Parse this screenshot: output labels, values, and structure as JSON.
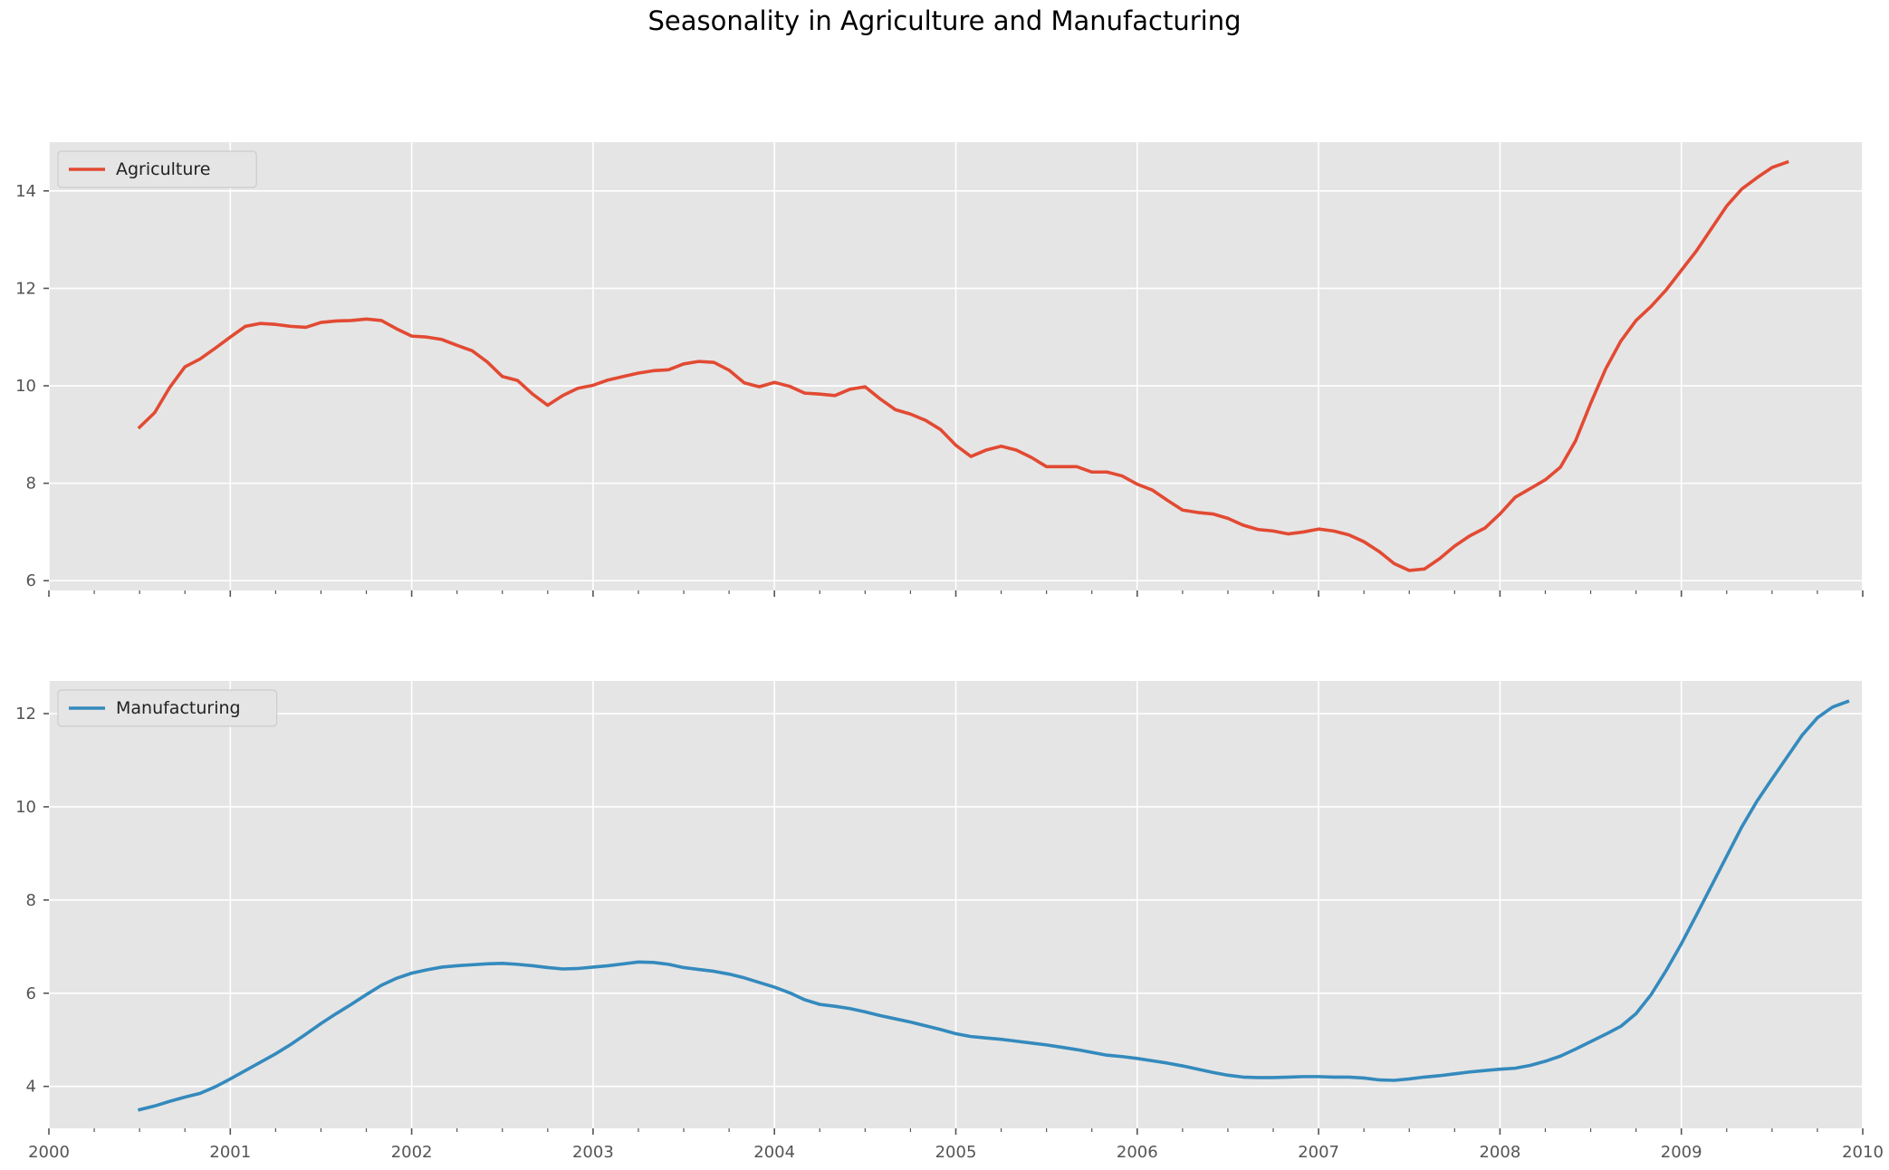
{
  "suptitle": "Seasonality in Agriculture and Manufacturing",
  "x_tick_labels": [
    "2000",
    "2001",
    "2002",
    "2003",
    "2004",
    "2005",
    "2006",
    "2007",
    "2008",
    "2009",
    "2010"
  ],
  "chart_data": [
    {
      "type": "line",
      "legend_placement": "upper-left",
      "grid": true,
      "xlim": [
        "2000-01",
        "2010-01"
      ],
      "ylim": [
        5.8,
        15.0
      ],
      "yticks": [
        6,
        8,
        10,
        12,
        14
      ],
      "series": [
        {
          "name": "Agriculture",
          "color": "#E24A33",
          "start": "2000-07",
          "frequency": "monthly",
          "values": [
            9.15,
            9.45,
            9.97,
            10.39,
            10.55,
            10.77,
            11.0,
            11.22,
            11.28,
            11.26,
            11.22,
            11.2,
            11.3,
            11.33,
            11.34,
            11.37,
            11.34,
            11.17,
            11.02,
            11.0,
            10.95,
            10.83,
            10.72,
            10.49,
            10.19,
            10.11,
            9.83,
            9.6,
            9.8,
            9.95,
            10.01,
            10.12,
            10.19,
            10.26,
            10.31,
            10.33,
            10.45,
            10.5,
            10.48,
            10.32,
            10.06,
            9.98,
            10.07,
            9.99,
            9.85,
            9.83,
            9.8,
            9.93,
            9.98,
            9.73,
            9.51,
            9.42,
            9.29,
            9.1,
            8.78,
            8.55,
            8.68,
            8.76,
            8.68,
            8.53,
            8.34,
            8.34,
            8.34,
            8.23,
            8.23,
            8.15,
            7.98,
            7.86,
            7.65,
            7.45,
            7.4,
            7.37,
            7.28,
            7.14,
            7.05,
            7.02,
            6.96,
            7.0,
            7.06,
            7.02,
            6.94,
            6.8,
            6.6,
            6.35,
            6.21,
            6.24,
            6.45,
            6.71,
            6.92,
            7.08,
            7.37,
            7.71,
            7.89,
            8.07,
            8.33,
            8.87,
            9.64,
            10.35,
            10.92,
            11.34,
            11.63,
            11.97,
            12.37,
            12.77,
            13.23,
            13.69,
            14.04,
            14.27,
            14.48,
            14.59
          ]
        }
      ]
    },
    {
      "type": "line",
      "legend_placement": "upper-left",
      "grid": true,
      "xlim": [
        "2000-01",
        "2010-01"
      ],
      "ylim": [
        3.1,
        12.7
      ],
      "yticks": [
        4,
        6,
        8,
        10,
        12
      ],
      "series": [
        {
          "name": "Manufacturing",
          "color": "#348ABD",
          "start": "2000-07",
          "frequency": "monthly",
          "values": [
            3.5,
            3.58,
            3.68,
            3.77,
            3.85,
            3.99,
            4.16,
            4.34,
            4.52,
            4.7,
            4.9,
            5.12,
            5.35,
            5.56,
            5.76,
            5.97,
            6.17,
            6.32,
            6.43,
            6.5,
            6.56,
            6.59,
            6.61,
            6.63,
            6.64,
            6.62,
            6.59,
            6.55,
            6.52,
            6.53,
            6.56,
            6.59,
            6.63,
            6.67,
            6.66,
            6.62,
            6.55,
            6.51,
            6.47,
            6.41,
            6.33,
            6.23,
            6.13,
            6.01,
            5.86,
            5.76,
            5.72,
            5.67,
            5.6,
            5.52,
            5.45,
            5.38,
            5.3,
            5.22,
            5.13,
            5.07,
            5.04,
            5.01,
            4.97,
            4.93,
            4.89,
            4.84,
            4.79,
            4.73,
            4.67,
            4.64,
            4.6,
            4.55,
            4.5,
            4.44,
            4.37,
            4.3,
            4.24,
            4.2,
            4.19,
            4.19,
            4.2,
            4.21,
            4.21,
            4.2,
            4.2,
            4.18,
            4.14,
            4.13,
            4.16,
            4.2,
            4.23,
            4.27,
            4.31,
            4.34,
            4.37,
            4.39,
            4.45,
            4.54,
            4.65,
            4.8,
            4.96,
            5.12,
            5.29,
            5.56,
            5.97,
            6.49,
            7.06,
            7.68,
            8.31,
            8.94,
            9.57,
            10.12,
            10.6,
            11.07,
            11.54,
            11.91,
            12.14,
            12.26
          ]
        }
      ]
    }
  ]
}
